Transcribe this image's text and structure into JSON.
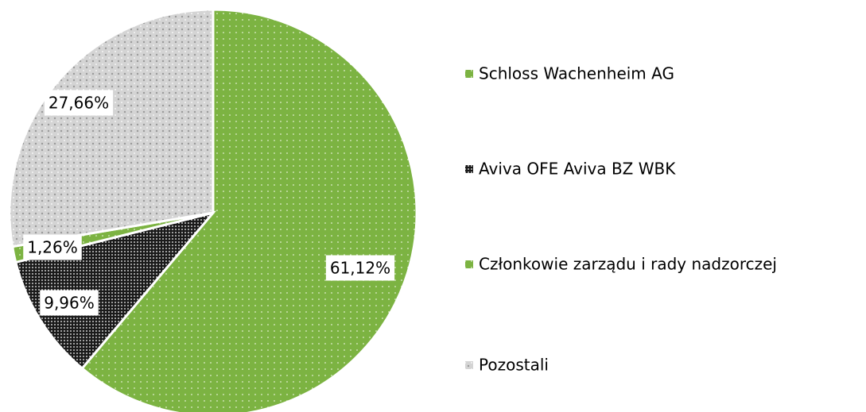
{
  "chart_data": {
    "type": "pie",
    "categories": [
      "Schloss Wachenheim AG",
      "Aviva OFE Aviva BZ WBK",
      "Członkowie zarządu i rady nadzorczej",
      "Pozostali"
    ],
    "values": [
      61.12,
      9.96,
      1.26,
      27.66
    ],
    "value_labels": [
      "61,12%",
      "9,96%",
      "1,26%",
      "27,66%"
    ],
    "colors": [
      "#7cb342",
      "#1a1a1a",
      "#7cb342",
      "#d4d4d4"
    ],
    "legend": "right"
  }
}
